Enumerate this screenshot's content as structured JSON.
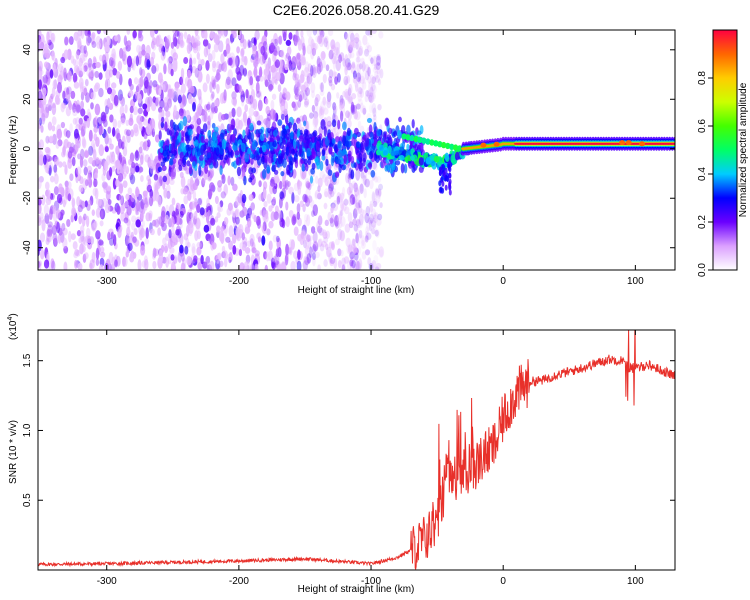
{
  "title": "C2E6.2026.058.20.41.G29",
  "colors": {
    "snr_line": "#e8302a",
    "axis": "#000000",
    "background": "#ffffff"
  },
  "chart_data": [
    {
      "type": "heatmap",
      "title": "C2E6.2026.058.20.41.G29",
      "xlabel": "Height of straight line (km)",
      "ylabel": "Frequency (Hz)",
      "xlim": [
        -352,
        130
      ],
      "ylim": [
        -49,
        48
      ],
      "xticks": [
        -300,
        -200,
        -100,
        0,
        100
      ],
      "xtick_labels": [
        "-300",
        "-200",
        "-100",
        "0",
        "100"
      ],
      "yticks": [
        -40,
        -20,
        0,
        20,
        40
      ],
      "ytick_labels": [
        "-40",
        "-20",
        "0",
        "20",
        "40"
      ],
      "colorbar": {
        "label": "Normalized spectral amplitude",
        "range": [
          0,
          1
        ],
        "ticks": [
          0.0,
          0.2,
          0.4,
          0.6,
          0.8
        ],
        "tick_labels": [
          "0.0",
          "0.2",
          "0.4",
          "0.6",
          "0.8"
        ]
      },
      "regions": [
        {
          "x_range": [
            -352,
            -95
          ],
          "freq_range": [
            -49,
            48
          ],
          "description": "broadband noise",
          "amplitude": 0.1
        },
        {
          "x_range": [
            -260,
            -95
          ],
          "freq_range": [
            -8,
            8
          ],
          "description": "noisy signal band",
          "amplitude": 0.2
        },
        {
          "x_range": [
            -80,
            -30
          ],
          "freq_range": [
            -12,
            6
          ],
          "description": "drifting signal",
          "amplitude": 0.4
        },
        {
          "x_range": [
            -30,
            130
          ],
          "freq_range": [
            0,
            4
          ],
          "description": "steady carrier",
          "amplitude": 1.0
        }
      ]
    },
    {
      "type": "line",
      "title": "",
      "xlabel": "Height of straight line (km)",
      "ylabel": "SNR (10 * v/v)",
      "y_multiplier": "(x10",
      "y_multiplier_exp": "4",
      "y_multiplier_close": ")",
      "xlim": [
        -352,
        130
      ],
      "ylim": [
        0,
        17200
      ],
      "xticks": [
        -300,
        -200,
        -100,
        0,
        100
      ],
      "xtick_labels": [
        "-300",
        "-200",
        "-100",
        "0",
        "100"
      ],
      "yticks": [
        5000,
        10000,
        15000
      ],
      "ytick_labels": [
        "0.5",
        "1.0",
        "1.5"
      ],
      "series": [
        {
          "name": "SNR",
          "x": [
            -352,
            -300,
            -250,
            -200,
            -150,
            -100,
            -80,
            -65,
            -55,
            -45,
            -40,
            -35,
            -30,
            -25,
            -20,
            -15,
            -10,
            -5,
            0,
            10,
            20,
            30,
            40,
            50,
            60,
            70,
            80,
            90,
            95,
            100,
            105,
            110,
            120,
            130
          ],
          "y": [
            400,
            450,
            550,
            650,
            800,
            450,
            900,
            1700,
            2700,
            5200,
            6400,
            6800,
            7000,
            7300,
            7600,
            8200,
            8500,
            9200,
            10900,
            12700,
            13500,
            13600,
            14000,
            14200,
            14500,
            14800,
            15100,
            15000,
            14500,
            14400,
            14600,
            14700,
            14300,
            13900
          ]
        }
      ]
    }
  ]
}
